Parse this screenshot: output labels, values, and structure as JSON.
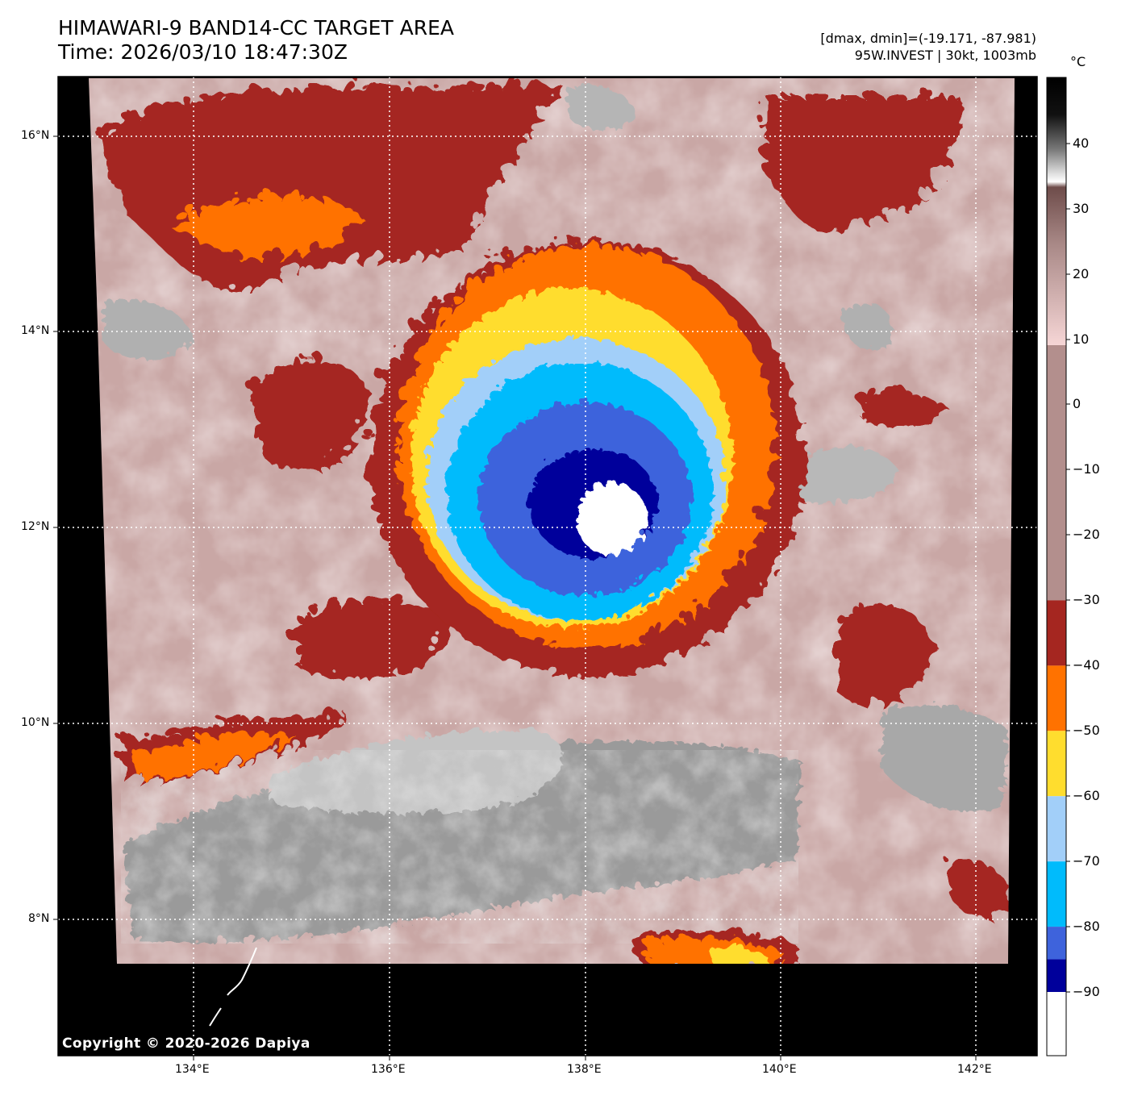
{
  "header": {
    "title_line1": "HIMAWARI-9 BAND14-CC TARGET AREA",
    "title_line2": "Time: 2026/03/10 18:47:30Z",
    "dminmax": "[dmax, dmin]=(-19.171, -87.981)",
    "storm": "95W.INVEST | 30kt, 1003mb"
  },
  "axes": {
    "lat_labels": [
      "16°N",
      "14°N",
      "12°N",
      "10°N",
      "8°N"
    ],
    "lon_labels": [
      "134°E",
      "136°E",
      "138°E",
      "140°E",
      "142°E"
    ]
  },
  "colorbar": {
    "unit": "°C",
    "labels": [
      "40",
      "30",
      "20",
      "10",
      "0",
      "−10",
      "−20",
      "−30",
      "−40",
      "−50",
      "−60",
      "−70",
      "−80",
      "−90"
    ],
    "bands": [
      {
        "from": -30,
        "to": -40,
        "color": "#a52620"
      },
      {
        "from": -40,
        "to": -50,
        "color": "#ff7200"
      },
      {
        "from": -50,
        "to": -60,
        "color": "#ffdd2e"
      },
      {
        "from": -60,
        "to": -70,
        "color": "#a2cff9"
      },
      {
        "from": -70,
        "to": -80,
        "color": "#00bbfc"
      },
      {
        "from": -80,
        "to": -85,
        "color": "#3e63dc"
      },
      {
        "from": -85,
        "to": -90,
        "color": "#00009b"
      },
      {
        "from": -90,
        "to": -100,
        "color": "#ffffff"
      }
    ]
  },
  "copyright": "Copyright © 2020-2026 Dapiya"
}
